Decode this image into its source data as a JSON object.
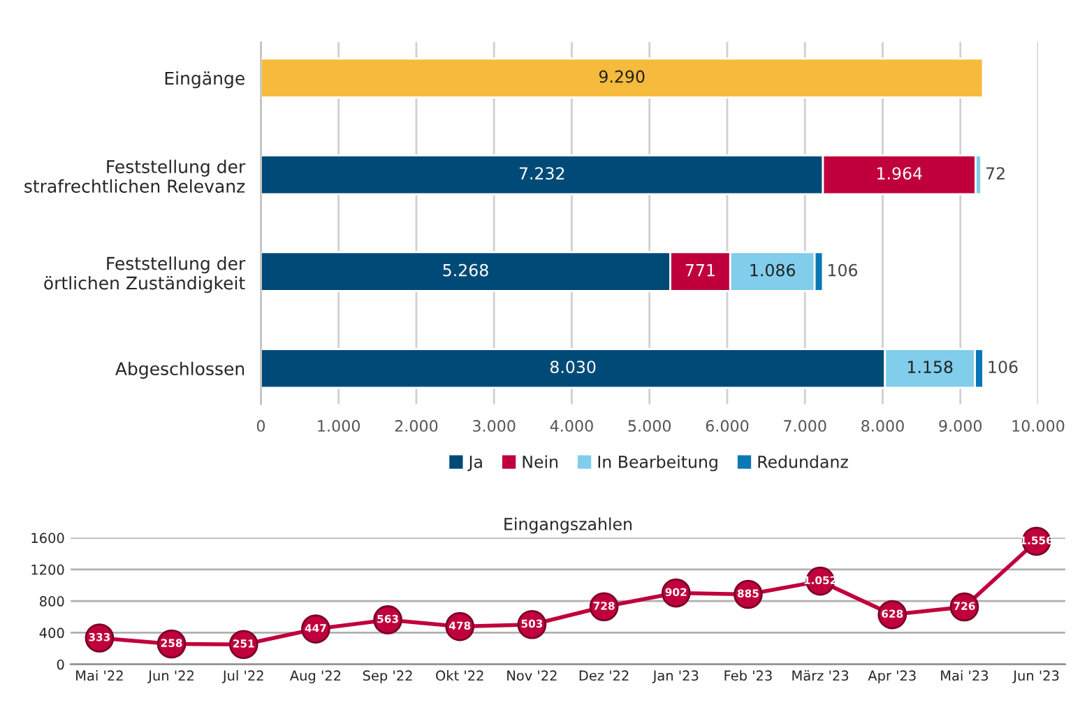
{
  "chart_data": [
    {
      "type": "bar",
      "orientation": "horizontal",
      "stacked": true,
      "categories": [
        "Eingänge",
        "Feststellung der\nstrafrechtlichen Relevanz",
        "Feststellung der\nörtlichen Zuständigkeit",
        "Abgeschlossen"
      ],
      "series": [
        {
          "color": "#f6bb3c",
          "values": [
            9290,
            null,
            null,
            null
          ],
          "value_labels": [
            "9.290",
            null,
            null,
            null
          ]
        },
        {
          "name": "Ja",
          "color": "#004a77",
          "values": [
            null,
            7232,
            5268,
            8030
          ],
          "value_labels": [
            null,
            "7.232",
            "5.268",
            "8.030"
          ]
        },
        {
          "name": "Nein",
          "color": "#c0003c",
          "values": [
            null,
            1964,
            771,
            null
          ],
          "value_labels": [
            null,
            "1.964",
            "771",
            null
          ]
        },
        {
          "name": "In Bearbeitung",
          "color": "#80cdec",
          "values": [
            null,
            72,
            1086,
            1158
          ],
          "value_labels": [
            null,
            "72",
            "1.086",
            "1.158"
          ]
        },
        {
          "name": "Redundanz",
          "color": "#0a78b4",
          "values": [
            null,
            null,
            106,
            106
          ],
          "value_labels": [
            null,
            null,
            "106",
            "106"
          ]
        }
      ],
      "xlim": [
        0,
        10000
      ],
      "xticks": [
        0,
        {
          "value": 1000,
          "label": "1.000"
        },
        {
          "value": 2000,
          "label": "2.000"
        },
        {
          "value": 3000,
          "label": "3.000"
        },
        {
          "value": 4000,
          "label": "4.000"
        },
        {
          "value": 5000,
          "label": "5.000"
        },
        {
          "value": 6000,
          "label": "6.000"
        },
        {
          "value": 7000,
          "label": "7.000"
        },
        {
          "value": 8000,
          "label": "8.000"
        },
        {
          "value": 9000,
          "label": "9.000"
        },
        {
          "value": 10000,
          "label": "10.000"
        }
      ],
      "grid": "x",
      "legend": "bottom"
    },
    {
      "type": "line",
      "title": "Eingangszahlen",
      "categories": [
        "Mai '22",
        "Jun '22",
        "Jul '22",
        "Aug '22",
        "Sep '22",
        "Okt '22",
        "Nov '22",
        "Dez '22",
        "Jan '23",
        "Feb '23",
        "März '23",
        "Apr '23",
        "Mai '23",
        "Jun '23"
      ],
      "series": [
        {
          "color": "#c0003c",
          "values": [
            333,
            258,
            251,
            447,
            563,
            478,
            503,
            728,
            902,
            885,
            1052,
            628,
            726,
            1556
          ],
          "value_labels": [
            "333",
            "258",
            "251",
            "447",
            "563",
            "478",
            "503",
            "728",
            "902",
            "885",
            "1.052",
            "628",
            "726",
            "1.556"
          ]
        }
      ],
      "ylim": [
        0,
        1600
      ],
      "yticks": [
        0,
        400,
        800,
        1200,
        1600
      ],
      "grid": "y",
      "marker": "circle",
      "line_style": "solid"
    }
  ]
}
